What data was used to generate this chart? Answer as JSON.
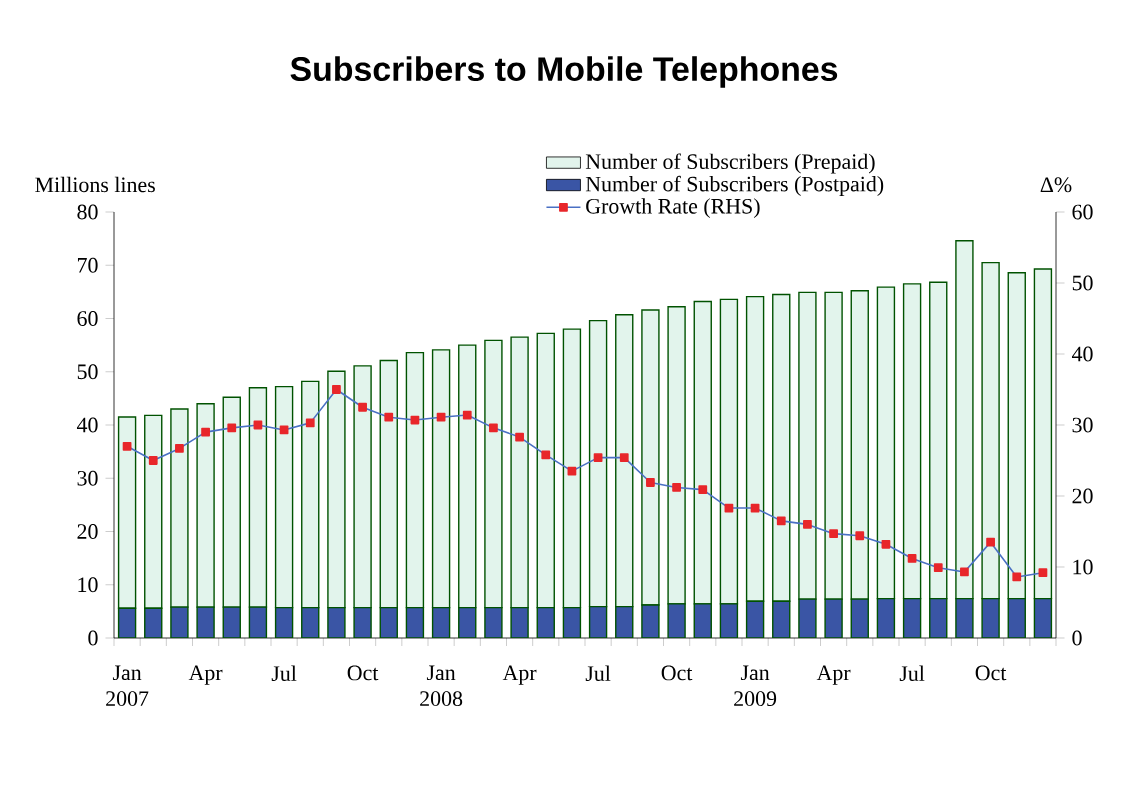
{
  "chart_data": {
    "type": "bar",
    "title": "Subscribers to Mobile Telephones",
    "ylabel": "Millions lines",
    "y2label": "Δ%",
    "categories": [
      "Jan 2007",
      null,
      null,
      "Apr",
      null,
      null,
      "Jul",
      null,
      null,
      "Oct",
      null,
      null,
      "Jan 2008",
      null,
      null,
      "Apr",
      null,
      null,
      "Jul",
      null,
      null,
      "Oct",
      null,
      null,
      "Jan 2009",
      null,
      null,
      "Apr",
      null,
      null,
      "Jul",
      null,
      null,
      "Oct",
      null,
      null
    ],
    "stacked": true,
    "legend": "top",
    "marker": "square",
    "ylim": [
      0,
      80
    ],
    "yticks": [
      0,
      10,
      20,
      30,
      40,
      50,
      60,
      70,
      80
    ],
    "y2lim": [
      0,
      60
    ],
    "y2ticks": [
      0,
      10,
      20,
      30,
      40,
      50,
      60
    ],
    "series": [
      {
        "name": "Number of Subscribers (Postpaid)",
        "color": "#3a55a5",
        "values": [
          5.6,
          5.6,
          5.8,
          5.8,
          5.8,
          5.8,
          5.7,
          5.7,
          5.7,
          5.7,
          5.7,
          5.7,
          5.7,
          5.7,
          5.7,
          5.7,
          5.7,
          5.7,
          5.9,
          5.9,
          6.2,
          6.4,
          6.4,
          6.4,
          6.9,
          6.9,
          7.3,
          7.3,
          7.3,
          7.4,
          7.4,
          7.4,
          7.4,
          7.4,
          7.4,
          7.4
        ]
      },
      {
        "name": "Number of Subscribers (Prepaid)",
        "color": "#e2f4ec",
        "values": [
          35.9,
          36.2,
          37.2,
          38.2,
          39.4,
          41.2,
          41.5,
          42.5,
          44.4,
          45.4,
          46.4,
          47.9,
          48.4,
          49.3,
          50.2,
          50.8,
          51.5,
          52.3,
          53.7,
          54.8,
          55.4,
          55.8,
          56.8,
          57.2,
          57.2,
          57.6,
          57.6,
          57.6,
          57.9,
          58.5,
          59.1,
          59.4,
          67.2,
          63.1,
          61.2,
          61.9
        ]
      },
      {
        "type": "line",
        "axis": "y2",
        "name": "Growth Rate (RHS)",
        "color": "#4a70c4",
        "values": [
          27.0,
          25.0,
          26.7,
          29.0,
          29.6,
          30.0,
          29.3,
          30.3,
          35.0,
          32.5,
          31.1,
          30.7,
          31.1,
          31.4,
          29.6,
          28.3,
          25.8,
          23.5,
          25.4,
          25.4,
          21.9,
          21.2,
          20.9,
          18.3,
          18.3,
          16.5,
          16.0,
          14.7,
          14.4,
          13.2,
          11.2,
          9.9,
          9.3,
          13.5,
          8.6,
          9.2
        ]
      }
    ]
  }
}
